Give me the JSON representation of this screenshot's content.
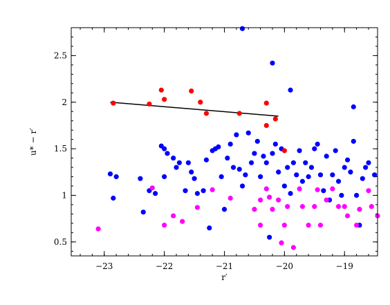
{
  "chart_data": {
    "type": "scatter",
    "title": "",
    "xlabel": "r′",
    "ylabel": "u* − r′",
    "xlim": [
      -23.55,
      -18.45
    ],
    "ylim": [
      0.35,
      2.8
    ],
    "x_reversed": false,
    "grid": false,
    "legend": "none",
    "x_ticks": [
      {
        "value": -23,
        "label": "−23"
      },
      {
        "value": -22,
        "label": "−22"
      },
      {
        "value": -21,
        "label": "−21"
      },
      {
        "value": -20,
        "label": "−20"
      },
      {
        "value": -19,
        "label": "−19"
      }
    ],
    "y_ticks": [
      {
        "value": 0.5,
        "label": "0.5"
      },
      {
        "value": 1.0,
        "label": "1"
      },
      {
        "value": 1.5,
        "label": "1.5"
      },
      {
        "value": 2.0,
        "label": "2"
      },
      {
        "value": 2.5,
        "label": "2.5"
      }
    ],
    "fit_line": {
      "color": "#000000",
      "x": [
        -22.9,
        -20.1
      ],
      "y": [
        2.0,
        1.85
      ]
    },
    "series": [
      {
        "color": "#ff0000",
        "points": [
          [
            -22.85,
            1.99
          ],
          [
            -22.25,
            1.98
          ],
          [
            -22.05,
            2.13
          ],
          [
            -21.55,
            2.12
          ],
          [
            -22.0,
            2.03
          ],
          [
            -21.4,
            2.0
          ],
          [
            -21.3,
            1.88
          ],
          [
            -20.75,
            1.88
          ],
          [
            -20.3,
            1.99
          ],
          [
            -20.3,
            1.75
          ],
          [
            -20.15,
            1.82
          ],
          [
            -20.0,
            1.48
          ]
        ]
      },
      {
        "color": "#ff00ff",
        "points": [
          [
            -23.1,
            0.64
          ],
          [
            -22.2,
            1.08
          ],
          [
            -22.0,
            0.68
          ],
          [
            -21.85,
            0.78
          ],
          [
            -21.7,
            0.72
          ],
          [
            -21.45,
            0.87
          ],
          [
            -21.2,
            1.06
          ],
          [
            -20.9,
            0.97
          ],
          [
            -20.5,
            0.85
          ],
          [
            -20.4,
            0.95
          ],
          [
            -20.4,
            0.68
          ],
          [
            -20.3,
            1.07
          ],
          [
            -20.25,
            0.98
          ],
          [
            -20.2,
            0.85
          ],
          [
            -20.1,
            0.95
          ],
          [
            -20.05,
            0.49
          ],
          [
            -20.0,
            0.68
          ],
          [
            -19.95,
            0.88
          ],
          [
            -19.85,
            0.44
          ],
          [
            -19.75,
            1.07
          ],
          [
            -19.7,
            0.88
          ],
          [
            -19.6,
            0.68
          ],
          [
            -19.5,
            0.88
          ],
          [
            -19.45,
            1.06
          ],
          [
            -19.4,
            0.68
          ],
          [
            -19.3,
            0.95
          ],
          [
            -19.2,
            1.07
          ],
          [
            -19.1,
            0.88
          ],
          [
            -19.0,
            0.88
          ],
          [
            -18.95,
            0.78
          ],
          [
            -18.8,
            0.68
          ],
          [
            -18.75,
            0.85
          ],
          [
            -18.6,
            1.05
          ],
          [
            -18.55,
            0.88
          ],
          [
            -18.45,
            0.78
          ]
        ]
      },
      {
        "color": "#0000ff",
        "points": [
          [
            -20.7,
            2.79
          ],
          [
            -20.2,
            2.42
          ],
          [
            -19.9,
            2.13
          ],
          [
            -18.85,
            1.95
          ],
          [
            -22.9,
            1.23
          ],
          [
            -22.85,
            0.97
          ],
          [
            -22.8,
            1.2
          ],
          [
            -22.4,
            1.18
          ],
          [
            -22.35,
            0.82
          ],
          [
            -22.25,
            1.05
          ],
          [
            -22.15,
            1.02
          ],
          [
            -22.05,
            1.53
          ],
          [
            -22.0,
            1.5
          ],
          [
            -22.0,
            1.2
          ],
          [
            -21.95,
            1.45
          ],
          [
            -21.85,
            1.4
          ],
          [
            -21.8,
            1.3
          ],
          [
            -21.75,
            1.35
          ],
          [
            -21.65,
            1.05
          ],
          [
            -21.6,
            1.35
          ],
          [
            -21.55,
            1.25
          ],
          [
            -21.5,
            1.18
          ],
          [
            -21.45,
            1.02
          ],
          [
            -21.35,
            1.05
          ],
          [
            -21.3,
            1.38
          ],
          [
            -21.25,
            0.65
          ],
          [
            -21.2,
            1.48
          ],
          [
            -21.15,
            1.5
          ],
          [
            -21.1,
            1.52
          ],
          [
            -21.05,
            1.2
          ],
          [
            -21.0,
            0.85
          ],
          [
            -20.95,
            1.4
          ],
          [
            -20.9,
            1.55
          ],
          [
            -20.85,
            1.3
          ],
          [
            -20.8,
            1.65
          ],
          [
            -20.75,
            1.28
          ],
          [
            -20.7,
            1.1
          ],
          [
            -20.65,
            1.22
          ],
          [
            -20.6,
            1.67
          ],
          [
            -20.55,
            1.35
          ],
          [
            -20.5,
            1.45
          ],
          [
            -20.45,
            1.58
          ],
          [
            -20.4,
            1.2
          ],
          [
            -20.35,
            1.42
          ],
          [
            -20.3,
            1.35
          ],
          [
            -20.25,
            0.55
          ],
          [
            -20.2,
            1.45
          ],
          [
            -20.15,
            1.55
          ],
          [
            -20.1,
            1.25
          ],
          [
            -20.05,
            1.5
          ],
          [
            -20.0,
            1.1
          ],
          [
            -19.95,
            1.3
          ],
          [
            -19.9,
            1.02
          ],
          [
            -19.85,
            1.35
          ],
          [
            -19.8,
            1.22
          ],
          [
            -19.75,
            1.48
          ],
          [
            -19.7,
            1.15
          ],
          [
            -19.65,
            1.35
          ],
          [
            -19.6,
            1.2
          ],
          [
            -19.55,
            1.3
          ],
          [
            -19.5,
            1.5
          ],
          [
            -19.45,
            1.55
          ],
          [
            -19.4,
            1.22
          ],
          [
            -19.35,
            1.05
          ],
          [
            -19.3,
            1.42
          ],
          [
            -19.25,
            0.95
          ],
          [
            -19.2,
            1.22
          ],
          [
            -19.15,
            1.48
          ],
          [
            -19.1,
            1.15
          ],
          [
            -19.05,
            1.0
          ],
          [
            -19.0,
            1.3
          ],
          [
            -18.95,
            1.38
          ],
          [
            -18.9,
            1.25
          ],
          [
            -18.85,
            1.58
          ],
          [
            -18.8,
            1.0
          ],
          [
            -18.75,
            0.68
          ],
          [
            -18.7,
            1.18
          ],
          [
            -18.65,
            1.3
          ],
          [
            -18.6,
            1.35
          ],
          [
            -18.5,
            1.22
          ]
        ]
      }
    ]
  }
}
